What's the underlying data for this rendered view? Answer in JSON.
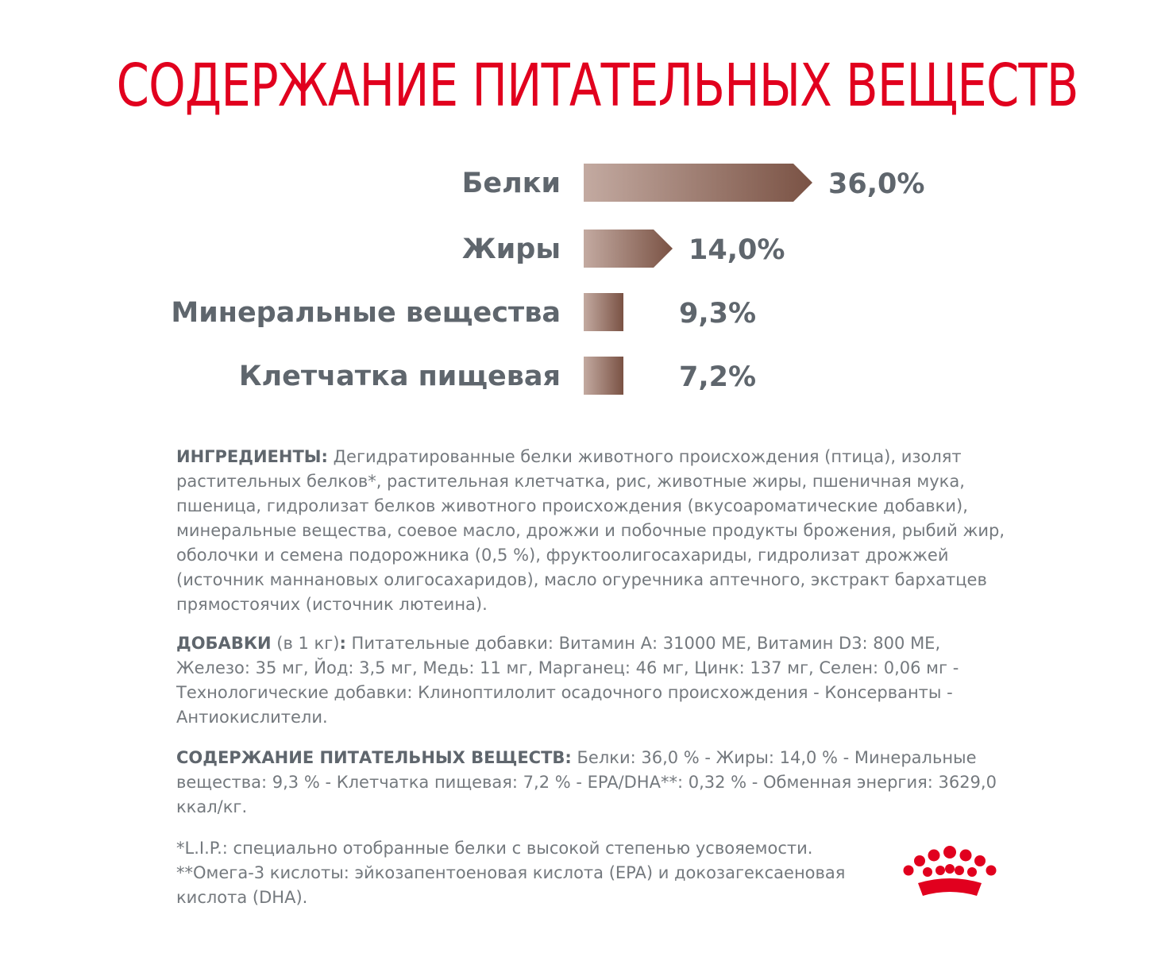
{
  "title": "СОДЕРЖАНИЕ ПИТАТЕЛЬНЫХ ВЕЩЕСТВ",
  "chart_data": {
    "type": "bar",
    "orientation": "horizontal",
    "categories": [
      "Белки",
      "Жиры",
      "Минеральные вещества",
      "Клетчатка пищевая"
    ],
    "values": [
      36.0,
      14.0,
      9.3,
      7.2
    ],
    "value_labels": [
      "36,0%",
      "14,0%",
      "9,3%",
      "7,2%"
    ],
    "unit": "%",
    "gradient": [
      "#c3aaa1",
      "#7a5244"
    ]
  },
  "ingredients": {
    "heading": "ИНГРЕДИЕНТЫ:",
    "text": "Дегидратированные белки животного происхождения (птица), изолят растительных белков*, растительная клетчатка, рис, животные жиры, пшеничная мука, пшеница, гидролизат белков животного происхождения (вкусоароматические добавки), минеральные вещества, соевое масло, дрожжи и побочные продукты брожения, рыбий жир, оболочки и семена подорожника (0,5 %), фруктоолигосахариды, гидролизат дрожжей (источник маннановых олигосахаридов), масло огуречника аптечного, экстракт бархатцев прямостоячих (источник лютеина)."
  },
  "additives": {
    "heading": "ДОБАВКИ",
    "qualifier": "(в 1 кг)",
    "colon": ":",
    "text": "Питательные добавки: Витамин А: 31000 МЕ, Витамин D3: 800 МЕ, Железо: 35 мг, Йод: 3,5 мг, Медь: 11 мг, Марганец: 46 мг, Цинк: 137 мг, Селен: 0,06 мг - Технологические добавки: Клиноптилолит осадочного происхождения - Консерванты - Антиокислители."
  },
  "nutrients": {
    "heading": "СОДЕРЖАНИЕ ПИТАТЕЛЬНЫХ ВЕЩЕСТВ:",
    "text": "Белки: 36,0 % - Жиры: 14,0 % - Минеральные вещества: 9,3 % - Клетчатка пищевая: 7,2 % - EPA/DHA**: 0,32 % - Обменная энергия: 3629,0 ккал/кг."
  },
  "footnotes": [
    "*L.I.P.: специально отобранные белки с высокой степенью усвояемости.",
    "**Омега-3 кислоты: эйкозапентоеновая кислота (EPA) и докозагексаеновая кислота (DHA)."
  ],
  "logo": {
    "icon": "royal-canin-crown-icon",
    "color": "#e1001e"
  }
}
